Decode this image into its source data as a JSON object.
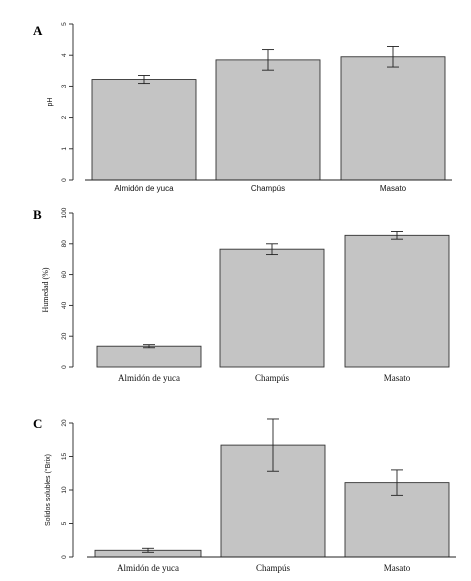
{
  "chart_data": [
    {
      "type": "bar",
      "panel": "A",
      "categories": [
        "Almidón de yuca",
        "Champús",
        "Masato"
      ],
      "values": [
        3.22,
        3.85,
        3.95
      ],
      "errors": [
        0.13,
        0.33,
        0.33
      ],
      "ylabel": "pH",
      "ylim": [
        0,
        5
      ],
      "yticks": [
        "0",
        "1",
        "2",
        "3",
        "4",
        "5"
      ],
      "grid": false
    },
    {
      "type": "bar",
      "panel": "B",
      "categories": [
        "Almidón de yuca",
        "Champús",
        "Masato"
      ],
      "values": [
        13.5,
        76.5,
        85.5
      ],
      "errors": [
        1.0,
        3.5,
        2.5
      ],
      "ylabel": "Humedad (%)",
      "ylim": [
        0,
        100
      ],
      "yticks": [
        "0",
        "20",
        "40",
        "60",
        "80",
        "100"
      ],
      "grid": false
    },
    {
      "type": "bar",
      "panel": "C",
      "categories": [
        "Almidón de yuca",
        "Champús",
        "Masato"
      ],
      "values": [
        1.0,
        16.7,
        11.1
      ],
      "errors": [
        0.3,
        3.9,
        1.9
      ],
      "ylabel": "Solidos solubles (°Brix)",
      "ylim": [
        0,
        20
      ],
      "yticks": [
        "0",
        "5",
        "10",
        "15",
        "20"
      ],
      "grid": false
    }
  ]
}
